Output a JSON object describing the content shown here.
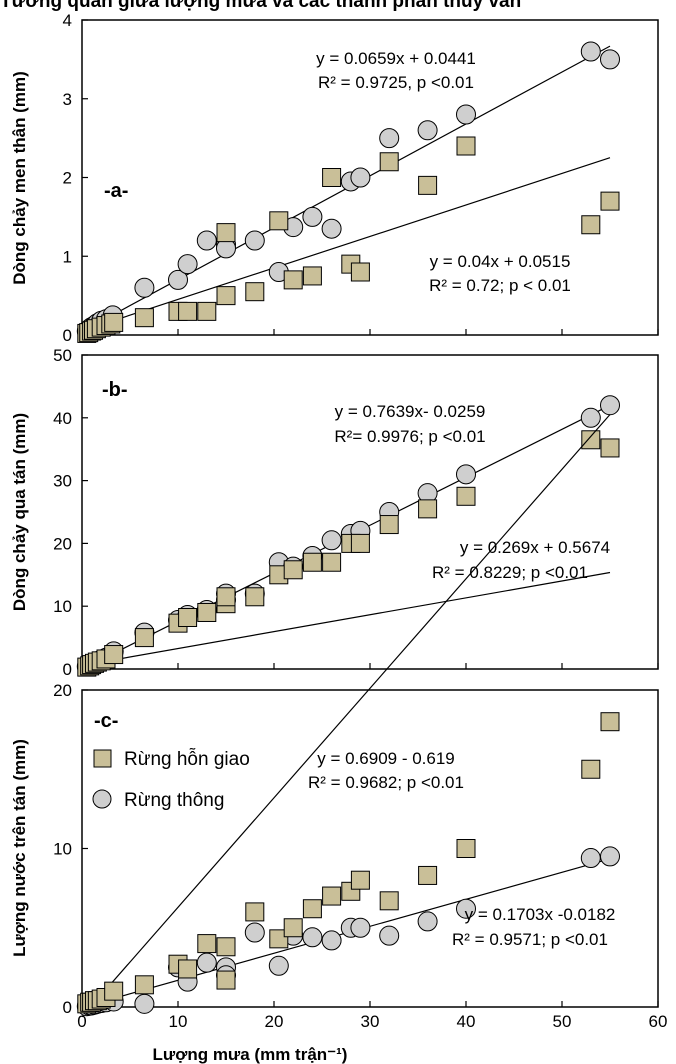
{
  "top_caption_fragment": "Tương quan giữa lượng mưa và các thành phần thủy văn",
  "colors": {
    "square_fill": "#c9bf98",
    "circle_fill": "#cfcfcf",
    "stroke": "#000000"
  },
  "chart_data": [
    {
      "type": "scatter",
      "panel_tag": "-a-",
      "ylabel": "Dòng chảy men thân (mm)",
      "xlim": [
        0,
        60
      ],
      "ylim": [
        0,
        4
      ],
      "yticks": [
        "0",
        "1",
        "2",
        "3",
        "4"
      ],
      "series": [
        {
          "marker": "square",
          "x": [
            0.5,
            0.7,
            1,
            1.2,
            1.5,
            2,
            2.5,
            3,
            3.3,
            6.5,
            10,
            11,
            13,
            15,
            15,
            18,
            20.5,
            22,
            24,
            26,
            28,
            29,
            32,
            36,
            40,
            53,
            55
          ],
          "y": [
            0.02,
            0.03,
            0.05,
            0.06,
            0.08,
            0.1,
            0.12,
            0.14,
            0.16,
            0.22,
            0.3,
            0.3,
            0.3,
            0.5,
            1.3,
            0.55,
            1.45,
            0.7,
            0.75,
            2.0,
            0.9,
            0.8,
            2.2,
            1.9,
            2.4,
            1.4,
            1.7
          ],
          "trend": {
            "slope": 0.04,
            "intercept": 0.0515,
            "x_range": [
              0,
              55
            ]
          },
          "equation": "y = 0.04x + 0.0515",
          "stats": "R² = 0.72; p < 0.01"
        },
        {
          "marker": "circle",
          "x": [
            0.5,
            0.8,
            1,
            1.3,
            1.6,
            2,
            2.5,
            3.2,
            6.5,
            10,
            11,
            13,
            15,
            15,
            18,
            20.5,
            22,
            24,
            26,
            28,
            29,
            32,
            36,
            40,
            53,
            55
          ],
          "y": [
            0.05,
            0.08,
            0.1,
            0.12,
            0.15,
            0.18,
            0.2,
            0.25,
            0.6,
            0.7,
            0.9,
            1.2,
            1.15,
            1.1,
            1.2,
            0.8,
            1.37,
            1.5,
            1.35,
            1.95,
            2.0,
            2.5,
            2.6,
            2.8,
            3.6,
            3.5
          ],
          "trend": {
            "slope": 0.0659,
            "intercept": 0.0441,
            "x_range": [
              0,
              55
            ]
          },
          "equation": "y = 0.0659x + 0.0441",
          "stats": "R² = 0.9725, p <0.01"
        }
      ]
    },
    {
      "type": "scatter",
      "panel_tag": "-b-",
      "ylabel": "Dòng chảy qua tán (mm)",
      "xlim": [
        0,
        60
      ],
      "ylim": [
        0,
        50
      ],
      "yticks": [
        "0",
        "10",
        "20",
        "30",
        "40",
        "50"
      ],
      "series": [
        {
          "marker": "square",
          "x": [
            0.5,
            0.8,
            1,
            1.3,
            1.6,
            2,
            2.5,
            3.3,
            6.5,
            10,
            11,
            13,
            15,
            15,
            18,
            20.5,
            22,
            24,
            26,
            28,
            29,
            32,
            36,
            40,
            53,
            55
          ],
          "y": [
            0.3,
            0.5,
            0.7,
            0.9,
            1.1,
            1.3,
            1.6,
            2.3,
            5,
            7.3,
            8.2,
            9,
            10.4,
            11.5,
            11.5,
            15,
            15.8,
            17,
            17,
            20,
            20,
            23,
            25.5,
            27.5,
            36.5,
            35.2
          ],
          "trend": {
            "slope": 0.269,
            "intercept": 0.5674,
            "x_range": [
              0,
              55
            ]
          },
          "equation": "y = 0.269x + 0.5674",
          "stats": "R² = 0.8229; p <0.01"
        },
        {
          "marker": "circle",
          "x": [
            0.5,
            0.8,
            1,
            1.3,
            1.6,
            2,
            2.5,
            3.3,
            6.5,
            10,
            11,
            13,
            15,
            15,
            18,
            20.5,
            22,
            24,
            26,
            28,
            29,
            32,
            36,
            40,
            53,
            55
          ],
          "y": [
            0.4,
            0.6,
            0.8,
            1.0,
            1.2,
            1.5,
            1.8,
            2.8,
            5.8,
            7.8,
            8.6,
            9.4,
            11,
            12,
            12,
            17,
            16.3,
            18,
            20.5,
            21.5,
            22,
            25,
            28,
            31,
            40,
            42
          ],
          "trend": {
            "slope": 0.7639,
            "intercept": -0.0259,
            "x_range": [
              0,
              55
            ]
          },
          "equation": "y = 0.7639x- 0.0259",
          "stats": "R²= 0.9976; p <0.01"
        }
      ]
    },
    {
      "type": "scatter",
      "panel_tag": "-c-",
      "ylabel": "Lượng nước trên tán (mm)",
      "xlabel": "Lượng mưa (mm trận⁻¹)",
      "xlim": [
        0,
        60
      ],
      "ylim": [
        0,
        20
      ],
      "xticks": [
        "0",
        "10",
        "20",
        "30",
        "40",
        "50",
        "60"
      ],
      "yticks": [
        "0",
        "10",
        "20"
      ],
      "legend": [
        "Rừng hỗn giao",
        "Rừng thông"
      ],
      "series": [
        {
          "name": "Rừng hỗn giao",
          "marker": "square",
          "x": [
            0.5,
            0.8,
            1,
            1.3,
            1.6,
            2,
            2.5,
            3.3,
            6.5,
            10,
            11,
            13,
            15,
            15,
            18,
            20.5,
            22,
            24,
            26,
            28,
            29,
            32,
            36,
            40,
            53,
            55
          ],
          "y": [
            0.2,
            0.3,
            0.3,
            0.4,
            0.4,
            0.5,
            0.6,
            1.0,
            1.4,
            2.7,
            2.4,
            4.0,
            3.8,
            1.7,
            6.0,
            4.3,
            5.0,
            6.2,
            7.0,
            7.3,
            8.0,
            6.7,
            8.3,
            10.0,
            15.0,
            18.0
          ],
          "trend": {
            "slope": 0.6909,
            "intercept": -0.619,
            "x_range": [
              0,
              55
            ]
          },
          "equation": "y = 0.6909 - 0.619",
          "stats": "R² = 0.9682; p <0.01"
        },
        {
          "name": "Rừng thông",
          "marker": "circle",
          "x": [
            0.5,
            0.8,
            1,
            1.3,
            1.6,
            2,
            2.5,
            3.3,
            6.5,
            10,
            11,
            13,
            15,
            15,
            18,
            20.5,
            22,
            24,
            26,
            28,
            29,
            32,
            36,
            40,
            53,
            55
          ],
          "y": [
            0.05,
            0.08,
            0.1,
            0.15,
            0.2,
            0.25,
            0.3,
            0.35,
            0.2,
            2.5,
            1.6,
            2.8,
            2.5,
            2.0,
            4.7,
            2.6,
            4.5,
            4.4,
            4.2,
            5.0,
            5.0,
            4.5,
            5.4,
            6.2,
            9.4,
            9.5
          ],
          "trend": {
            "slope": 0.1703,
            "intercept": -0.0182,
            "x_range": [
              0,
              55
            ]
          },
          "equation": "y = 0.1703x -0.0182",
          "stats": "R² = 0.9571; p <0.01"
        }
      ]
    }
  ]
}
